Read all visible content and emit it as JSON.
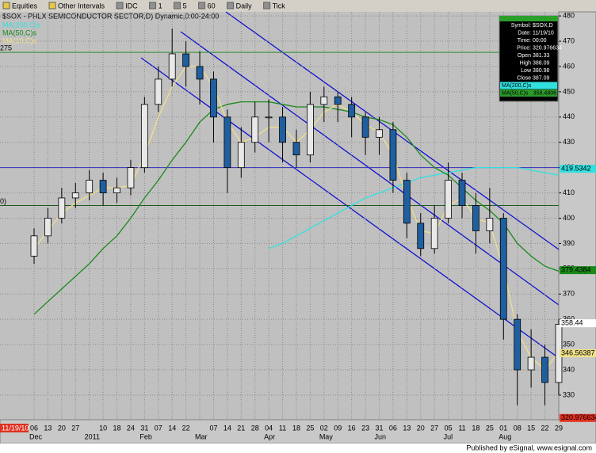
{
  "toolbar": [
    "Equities",
    "Other Intervals",
    "IDC",
    "1",
    "5",
    "60",
    "Daily",
    "Tick"
  ],
  "footer": "Published by eSignal, www.esignal.com",
  "data_window": [
    [
      "Symbol:",
      "$SOX,D"
    ],
    [
      "Date:",
      "11/19/10"
    ],
    [
      "Time:",
      "00:00"
    ],
    [
      "Price:",
      "320.976634"
    ],
    [
      "Open",
      "381.33"
    ],
    [
      "High",
      "388.09"
    ],
    [
      "Low",
      "380.98"
    ],
    [
      "Close",
      "387.09"
    ],
    [
      "MA(200,C)s",
      ""
    ],
    [
      "MA(50,C)s",
      "358.4806"
    ]
  ],
  "chart_data": {
    "type": "candlestick",
    "title": "$SOX - PHLX SEMICONDUCTOR SECTOR,D) Dynamic,0:00-24:00",
    "date_tag": "11/19/10",
    "categories": [
      "06",
      "13",
      "20",
      "27",
      null,
      "10",
      "18",
      "24",
      "31",
      "07",
      "14",
      "22",
      null,
      "07",
      "14",
      "21",
      "28",
      "04",
      "11",
      "18",
      "25",
      "02",
      "09",
      "16",
      "23",
      "31",
      "06",
      "13",
      "20",
      "27",
      "05",
      "11",
      "18",
      "25",
      "01",
      "08",
      "15",
      "22",
      "29"
    ],
    "month_labels": [
      "Dec",
      null,
      null,
      null,
      "2011",
      null,
      null,
      null,
      "Feb",
      null,
      null,
      null,
      "Mar",
      null,
      null,
      null,
      null,
      "Apr",
      null,
      null,
      null,
      "May",
      null,
      null,
      null,
      "Jun",
      null,
      null,
      null,
      null,
      "Jul",
      null,
      null,
      null,
      "Aug",
      null,
      null,
      null,
      null
    ],
    "open": [
      385,
      393,
      400,
      408,
      410,
      415,
      410,
      412,
      420,
      445,
      455,
      465,
      460,
      455,
      440,
      420,
      430,
      440,
      440,
      430,
      425,
      445,
      448,
      445,
      440,
      432,
      435,
      415,
      398,
      388,
      400,
      415,
      405,
      395,
      400,
      360,
      340,
      345,
      335
    ],
    "high": [
      396,
      404,
      412,
      414,
      419,
      418,
      416,
      423,
      448,
      460,
      475,
      470,
      466,
      458,
      443,
      436,
      446,
      447,
      444,
      435,
      450,
      452,
      450,
      448,
      442,
      440,
      438,
      418,
      402,
      405,
      422,
      418,
      410,
      412,
      402,
      362,
      356,
      350,
      360
    ],
    "low": [
      382,
      390,
      398,
      404,
      407,
      405,
      406,
      409,
      418,
      442,
      452,
      452,
      445,
      430,
      410,
      416,
      426,
      430,
      422,
      420,
      422,
      438,
      438,
      432,
      425,
      425,
      410,
      392,
      385,
      386,
      398,
      400,
      386,
      390,
      352,
      326,
      333,
      326,
      330
    ],
    "close": [
      393,
      400,
      408,
      410,
      415,
      410,
      412,
      420,
      445,
      455,
      465,
      460,
      455,
      440,
      420,
      430,
      440,
      440,
      430,
      425,
      445,
      448,
      445,
      440,
      432,
      435,
      415,
      398,
      388,
      400,
      415,
      405,
      395,
      400,
      360,
      340,
      345,
      335,
      358
    ],
    "up_color": "#e8e8e8",
    "down_color": "#1f5f9f",
    "overlays": [
      {
        "name": "MA(200,C)s",
        "color": "#33e0e0",
        "values": [
          null,
          null,
          null,
          null,
          null,
          null,
          null,
          null,
          null,
          null,
          null,
          null,
          null,
          null,
          null,
          null,
          null,
          388,
          390,
          393,
          396,
          399,
          402,
          405,
          408,
          410,
          412,
          414,
          416,
          417,
          418,
          419,
          420,
          420,
          420,
          420,
          419,
          418,
          417
        ]
      },
      {
        "name": "MA(50,C)s",
        "color": "#1a8a1a",
        "values": [
          362,
          367,
          372,
          377,
          382,
          388,
          393,
          400,
          408,
          415,
          423,
          430,
          438,
          443,
          445,
          446,
          446,
          446,
          445,
          444,
          444,
          444,
          443,
          442,
          440,
          439,
          437,
          432,
          425,
          420,
          417,
          412,
          407,
          403,
          398,
          390,
          385,
          381,
          379
        ]
      },
      {
        "name": "MA(10,C)s",
        "color": "#f0e08a",
        "values": [
          388,
          395,
          402,
          406,
          409,
          412,
          412,
          413,
          425,
          440,
          452,
          460,
          460,
          452,
          438,
          430,
          432,
          436,
          436,
          430,
          435,
          442,
          445,
          442,
          437,
          434,
          425,
          408,
          395,
          394,
          405,
          408,
          400,
          398,
          380,
          355,
          345,
          340,
          347
        ]
      }
    ],
    "ref_lines": [
      {
        "label": "275",
        "value": 465.6,
        "color": "#2e8b2e"
      },
      {
        "label": "0)",
        "value": 405,
        "color": "#1e5a1e"
      },
      {
        "value": 420,
        "color": "#3030c0"
      }
    ],
    "value_tags": [
      {
        "value": 419.5342,
        "color": "#33e0e0"
      },
      {
        "value": 379.4384,
        "color": "#1a8a1a"
      },
      {
        "value": 358.44,
        "color": "#ffffff"
      },
      {
        "value": 346.56387,
        "color": "#f0e08a"
      },
      {
        "value": 320.976634,
        "color": "#e03020"
      }
    ],
    "ylim": [
      320.9,
      481.6
    ],
    "yticks": [
      330,
      340,
      350,
      360,
      370,
      380,
      390,
      400,
      410,
      420,
      430,
      440,
      450,
      460,
      470,
      480
    ],
    "grid": true
  }
}
